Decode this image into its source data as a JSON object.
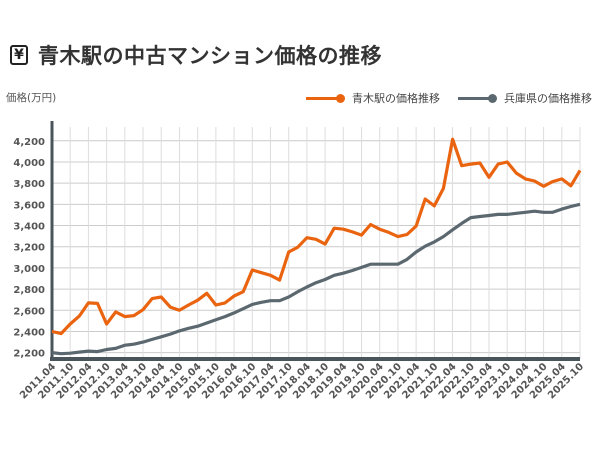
{
  "title": "青木駅の中古マンション価格の推移",
  "title_icon": "yen-icon",
  "chart_data": {
    "type": "line",
    "title": "青木駅の中古マンション価格の推移",
    "ylabel": "価格(万円)",
    "xlabel": "",
    "ylim": [
      2140,
      4330
    ],
    "yticks": [
      2200,
      2400,
      2600,
      2800,
      3000,
      3200,
      3400,
      3600,
      3800,
      4000,
      4200
    ],
    "ytick_labels": [
      "2,200",
      "2,400",
      "2,600",
      "2,800",
      "3,000",
      "3,200",
      "3,400",
      "3,600",
      "3,800",
      "4,000",
      "4,200"
    ],
    "grid": true,
    "legend_position": "top-right",
    "xtick_labels": [
      "2011.04",
      "2011.10",
      "2012.04",
      "2012.10",
      "2013.04",
      "2013.10",
      "2014.04",
      "2014.10",
      "2015.04",
      "2015.10",
      "2016.04",
      "2016.10",
      "2017.04",
      "2017.10",
      "2018.04",
      "2018.10",
      "2019.04",
      "2019.10",
      "2020.04",
      "2020.10",
      "2021.04",
      "2021.10",
      "2022.04",
      "2022.10",
      "2023.04",
      "2023.10",
      "2024.04",
      "2024.10",
      "2025.04",
      "2025.10"
    ],
    "x_frequency": "quarterly",
    "series": [
      {
        "name": "青木駅の価格推移",
        "color": "#ea6410",
        "values": [
          2400,
          2380,
          2470,
          2545,
          2670,
          2665,
          2470,
          2585,
          2540,
          2550,
          2605,
          2710,
          2725,
          2630,
          2600,
          2650,
          2695,
          2760,
          2650,
          2670,
          2735,
          2775,
          2980,
          2955,
          2930,
          2885,
          3150,
          3195,
          3285,
          3270,
          3225,
          3375,
          3365,
          3340,
          3310,
          3410,
          3365,
          3335,
          3295,
          3315,
          3395,
          3650,
          3585,
          3750,
          4215,
          3965,
          3980,
          3990,
          3855,
          3980,
          4000,
          3895,
          3840,
          3820,
          3770,
          3815,
          3840,
          3775,
          3920
        ]
      },
      {
        "name": "兵庫県の価格推移",
        "color": "#5b686f",
        "values": [
          2200,
          2190,
          2195,
          2205,
          2215,
          2210,
          2230,
          2240,
          2270,
          2280,
          2300,
          2325,
          2350,
          2375,
          2405,
          2430,
          2450,
          2480,
          2510,
          2540,
          2575,
          2615,
          2655,
          2675,
          2690,
          2690,
          2725,
          2775,
          2820,
          2860,
          2890,
          2930,
          2950,
          2975,
          3005,
          3035,
          3035,
          3035,
          3035,
          3080,
          3150,
          3205,
          3245,
          3295,
          3360,
          3420,
          3475,
          3485,
          3495,
          3505,
          3505,
          3515,
          3525,
          3535,
          3525,
          3525,
          3555,
          3580,
          3600
        ]
      }
    ]
  }
}
